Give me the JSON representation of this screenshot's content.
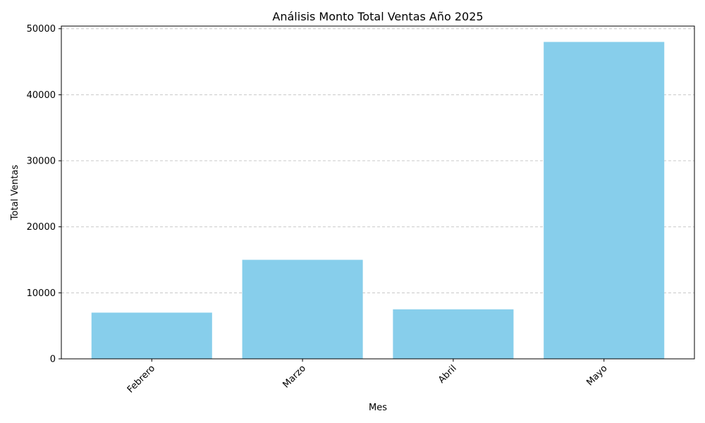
{
  "chart_data": {
    "type": "bar",
    "title": "Análisis Monto Total Ventas Año 2025",
    "xlabel": "Mes",
    "ylabel": "Total Ventas",
    "categories": [
      "Febrero",
      "Marzo",
      "Abril",
      "Mayo"
    ],
    "values": [
      7000,
      15000,
      7500,
      48000
    ],
    "ylim": [
      0,
      50400
    ],
    "yticks": [
      0,
      10000,
      20000,
      30000,
      40000,
      50000
    ],
    "ytick_labels": [
      "0",
      "10000",
      "20000",
      "30000",
      "40000",
      "50000"
    ],
    "xtick_rotation_deg": 45,
    "grid": "y-axis dashed",
    "legend": "none",
    "bar_color": "#87ceeb",
    "grid_color": "#c8c8c8"
  }
}
